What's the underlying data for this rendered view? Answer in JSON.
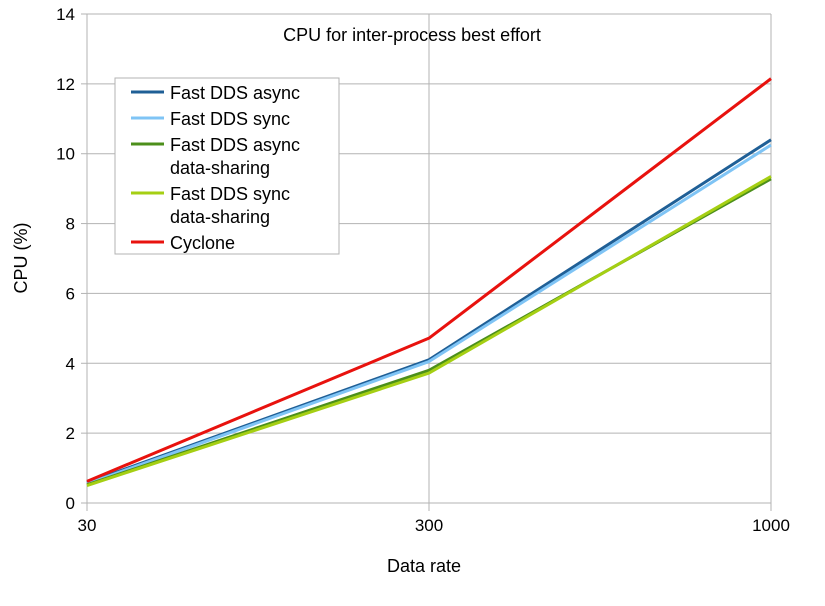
{
  "chart_data": {
    "type": "line",
    "title": "CPU for inter-process best effort",
    "xlabel": "Data rate",
    "ylabel": "CPU (%)",
    "categories": [
      "30",
      "300",
      "1000"
    ],
    "ylim": [
      0,
      14
    ],
    "yticks": [
      "0",
      "2",
      "4",
      "6",
      "8",
      "10",
      "12",
      "14"
    ],
    "grid": true,
    "legend_position": "top-left",
    "series": [
      {
        "name": "Fast DDS async",
        "name_lines": [
          "Fast DDS async"
        ],
        "color": "#1f5f96",
        "values": [
          0.58,
          4.1,
          10.4
        ]
      },
      {
        "name": "Fast DDS sync",
        "name_lines": [
          "Fast DDS sync"
        ],
        "color": "#7fc4f5",
        "values": [
          0.55,
          4.05,
          10.25
        ]
      },
      {
        "name": "Fast DDS async data-sharing",
        "name_lines": [
          "Fast DDS async",
          "data-sharing"
        ],
        "color": "#4c8f1b",
        "values": [
          0.52,
          3.8,
          9.28
        ]
      },
      {
        "name": "Fast DDS sync data-sharing",
        "name_lines": [
          "Fast DDS sync",
          "data-sharing"
        ],
        "color": "#a5cf13",
        "values": [
          0.5,
          3.72,
          9.35
        ]
      },
      {
        "name": "Cyclone",
        "name_lines": [
          "Cyclone"
        ],
        "color": "#e8120e",
        "values": [
          0.62,
          4.72,
          12.15
        ]
      }
    ]
  }
}
